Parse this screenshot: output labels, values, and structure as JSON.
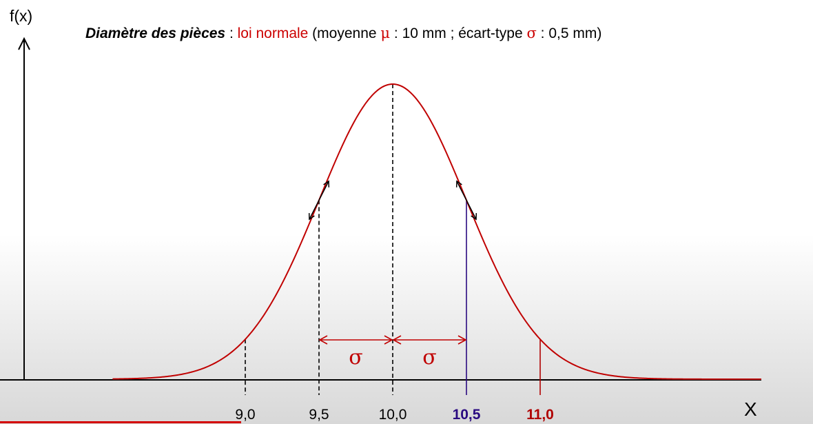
{
  "chart_data": {
    "type": "line",
    "title_parts": {
      "bold": "Diamètre des pièces",
      "sep": " : ",
      "law": "loi normale",
      "open": " (moyenne ",
      "mu": "μ",
      "mean_text": " : 10 mm ; écart-type ",
      "sigma": "σ",
      "sd_text": " : 0,5 mm)"
    },
    "xlabel": "X",
    "ylabel": "f(x)",
    "mean": 10,
    "sd": 0.5,
    "xlim": [
      8.1,
      12.9
    ],
    "ticks": [
      {
        "value": 9.0,
        "label": "9,0",
        "color": "#000000",
        "bold": false,
        "line": "dashed",
        "line_color": "#000000"
      },
      {
        "value": 9.5,
        "label": "9,5",
        "color": "#000000",
        "bold": false,
        "line": "dashed",
        "line_color": "#000000"
      },
      {
        "value": 10.0,
        "label": "10,0",
        "color": "#000000",
        "bold": false,
        "line": "dashed",
        "line_color": "#000000"
      },
      {
        "value": 10.5,
        "label": "10,5",
        "color": "#2a0a80",
        "bold": true,
        "line": "solid",
        "line_color": "#2a0a80"
      },
      {
        "value": 11.0,
        "label": "11,0",
        "color": "#b00000",
        "bold": true,
        "line": "solid",
        "line_color": "#b00000"
      }
    ],
    "sigma_label": "σ",
    "colors": {
      "curve": "#c00000",
      "arrow": "#c00000",
      "tangent": "#000000"
    }
  }
}
